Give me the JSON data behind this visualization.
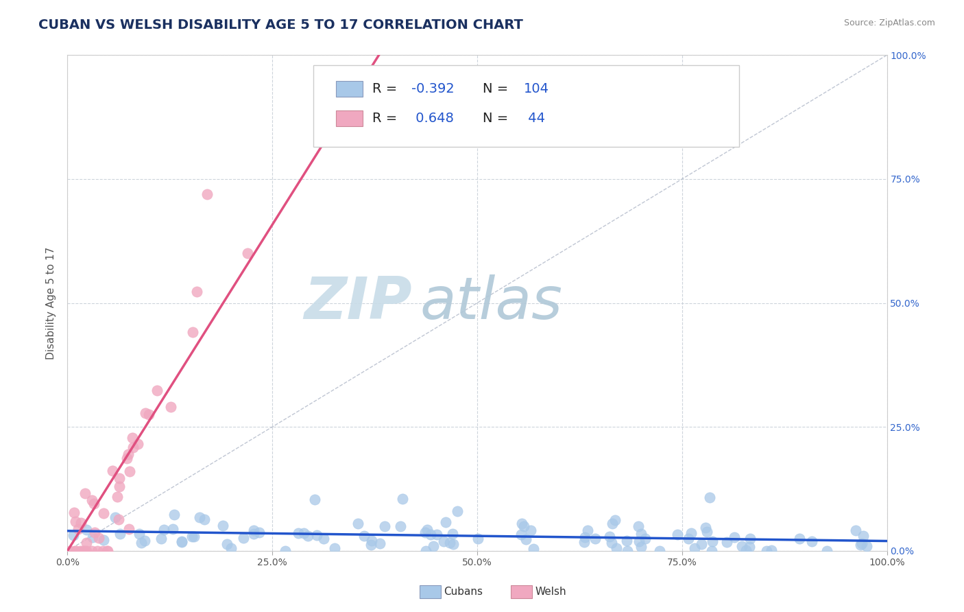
{
  "title": "CUBAN VS WELSH DISABILITY AGE 5 TO 17 CORRELATION CHART",
  "source": "Source: ZipAtlas.com",
  "ylabel": "Disability Age 5 to 17",
  "xlim": [
    0,
    1
  ],
  "ylim": [
    0,
    1
  ],
  "xtick_labels": [
    "0.0%",
    "25.0%",
    "50.0%",
    "75.0%",
    "100.0%"
  ],
  "xtick_vals": [
    0,
    0.25,
    0.5,
    0.75,
    1.0
  ],
  "ytick_labels_right": [
    "0.0%",
    "25.0%",
    "50.0%",
    "75.0%",
    "100.0%"
  ],
  "ytick_vals": [
    0,
    0.25,
    0.5,
    0.75,
    1.0
  ],
  "cubans_R": -0.392,
  "cubans_N": 104,
  "welsh_R": 0.648,
  "welsh_N": 44,
  "cubans_color": "#a8c8e8",
  "welsh_color": "#f0a8c0",
  "cubans_line_color": "#2255cc",
  "welsh_line_color": "#e05080",
  "identity_line_color": "#b0b8c8",
  "grid_color": "#c8d0d8",
  "title_color": "#1a3060",
  "source_color": "#888888",
  "watermark_ZIP_color": "#c8dce8",
  "watermark_atlas_color": "#b0c8d8",
  "legend_label_color": "#222222",
  "legend_value_color": "#2255cc",
  "background_color": "#ffffff",
  "cubans_seed": 42,
  "welsh_seed": 7,
  "title_fontsize": 14,
  "axis_label_fontsize": 11,
  "tick_fontsize": 10,
  "legend_fontsize": 14
}
